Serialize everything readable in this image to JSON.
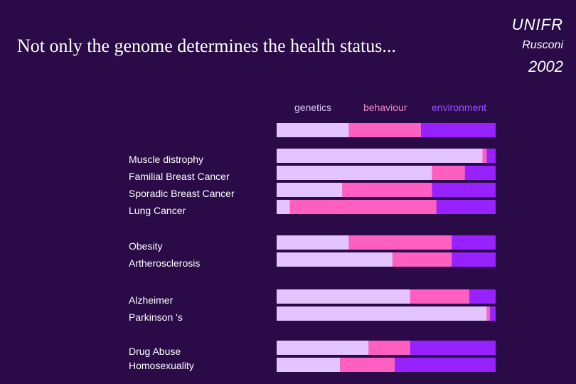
{
  "header": {
    "title": "Not only the  genome determines the health status...",
    "brand": "UNIFR",
    "author": "Rusconi",
    "year": "2002"
  },
  "chart_data": {
    "type": "bar",
    "orientation": "horizontal",
    "stacked": true,
    "normalized": true,
    "title": "Not only the  genome determines the health status...",
    "legend": [
      "genetics",
      "behaviour",
      "environment"
    ],
    "legend_position": "top",
    "colors": {
      "genetics": "#e3c4ff",
      "behaviour": "#ff5fc1",
      "environment": "#9721ff"
    },
    "categories": [
      "",
      "Muscle distrophy",
      "Familial Breast Cancer",
      "Sporadic Breast Cancer",
      "Lung Cancer",
      "Obesity",
      "Artherosclerosis",
      "Alzheimer",
      "Parkinson 's",
      "Drug Abuse",
      "Homosexuality"
    ],
    "series": [
      {
        "name": "genetics",
        "values": [
          33,
          94,
          71,
          30,
          6,
          33,
          53,
          61,
          96,
          42,
          29
        ]
      },
      {
        "name": "behaviour",
        "values": [
          33,
          2,
          15,
          41,
          67,
          47,
          27,
          27,
          1.5,
          19,
          25
        ]
      },
      {
        "name": "environment",
        "values": [
          34,
          4,
          14,
          29,
          27,
          20,
          20,
          12,
          2.5,
          39,
          46
        ]
      }
    ],
    "xlabel": "",
    "ylabel": "",
    "xlim": [
      0,
      100
    ]
  }
}
